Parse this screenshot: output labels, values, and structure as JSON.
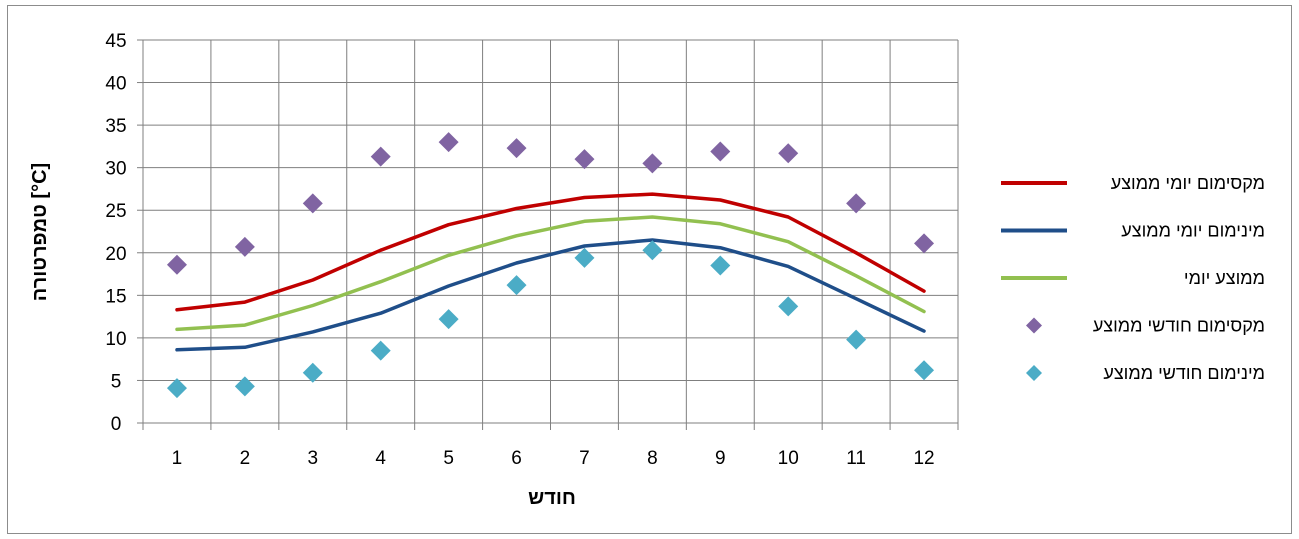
{
  "chart_data": {
    "type": "line",
    "x": [
      1,
      2,
      3,
      4,
      5,
      6,
      7,
      8,
      9,
      10,
      11,
      12
    ],
    "xlabel": "חודש",
    "ylabel": "טמפרטורה [°C]",
    "xlim": [
      0.5,
      12.5
    ],
    "ylim": [
      0,
      45
    ],
    "yticks": [
      0,
      5,
      10,
      15,
      20,
      25,
      30,
      35,
      40,
      45
    ],
    "grid": true,
    "legend_position": "right",
    "series": [
      {
        "name": "מקסימום יומי ממוצע",
        "style": "line",
        "color": "#c00000",
        "values": [
          13.3,
          14.2,
          16.8,
          20.3,
          23.3,
          25.2,
          26.5,
          26.9,
          26.2,
          24.2,
          20.0,
          15.5
        ]
      },
      {
        "name": "מינימום יומי ממוצע",
        "style": "line",
        "color": "#1f4e89",
        "values": [
          8.6,
          8.9,
          10.7,
          12.9,
          16.1,
          18.8,
          20.8,
          21.5,
          20.6,
          18.4,
          14.6,
          10.8
        ]
      },
      {
        "name": "ממוצע יומי",
        "style": "line",
        "color": "#92c050",
        "values": [
          11.0,
          11.5,
          13.8,
          16.6,
          19.7,
          22.0,
          23.7,
          24.2,
          23.4,
          21.3,
          17.3,
          13.1
        ]
      },
      {
        "name": "מקסימום חודשי ממוצע",
        "style": "marker",
        "color": "#8064a2",
        "values": [
          18.6,
          20.7,
          25.8,
          31.3,
          33.0,
          32.3,
          31.0,
          30.5,
          31.9,
          31.7,
          25.8,
          21.1
        ]
      },
      {
        "name": "מינימום חודשי ממוצע",
        "style": "marker",
        "color": "#4bacc6",
        "values": [
          4.1,
          4.3,
          5.9,
          8.5,
          12.2,
          16.2,
          19.4,
          20.3,
          18.5,
          13.7,
          9.8,
          6.2
        ]
      }
    ]
  }
}
